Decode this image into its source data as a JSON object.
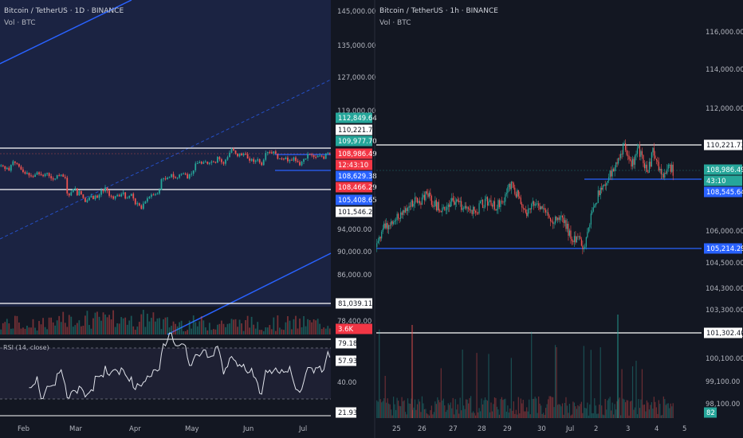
{
  "chart_data": [
    {
      "type": "candlestick",
      "title": "Bitcoin / TetherUS · 1D · BINANCE",
      "subtitle": "Vol · BTC",
      "x_ticks": [
        "Feb",
        "Mar",
        "Apr",
        "May",
        "Jun",
        "Jul"
      ],
      "y_ticks": [
        "145,000.00",
        "135,000.00",
        "127,000.00",
        "119,000.00",
        "94,000.00",
        "90,000.00",
        "86,000.00",
        "78,400.00"
      ],
      "horizontal_levels": [
        110221.73,
        108466.29,
        81039.11
      ],
      "price_labels": [
        {
          "text": "112,849.64",
          "kind": "green"
        },
        {
          "text": "110,221.73",
          "kind": "white"
        },
        {
          "text": "109,977.70",
          "kind": "green"
        },
        {
          "text": "108,986.49",
          "kind": "red"
        },
        {
          "text": "12:43:10",
          "kind": "red"
        },
        {
          "text": "108,629.38",
          "kind": "blue"
        },
        {
          "text": "108,466.29",
          "kind": "red"
        },
        {
          "text": "105,408.65",
          "kind": "blue"
        },
        {
          "text": "101,546.27",
          "kind": "white"
        },
        {
          "text": "81,039.11",
          "kind": "white"
        },
        {
          "text": "3.6K",
          "kind": "red"
        }
      ],
      "close_path": [
        102000,
        101500,
        99800,
        100500,
        98800,
        102200,
        104300,
        103400,
        102800,
        101200,
        99500,
        98000,
        97000,
        97600,
        96000,
        95500,
        95200,
        96400,
        97800,
        96800,
        96200,
        95600,
        96800,
        97400,
        95600,
        94300,
        93600,
        94200,
        96100,
        95800,
        96500,
        95200,
        94600,
        85400,
        84200,
        86100,
        88000,
        88400,
        84300,
        86800,
        84800,
        82700,
        80300,
        81400,
        83000,
        83900,
        82000,
        84100,
        82800,
        84600,
        87200,
        86600,
        88900,
        87000,
        84000,
        83700,
        82300,
        83800,
        84500,
        83600,
        85000,
        86000,
        82400,
        82800,
        83900,
        85200,
        82400,
        79000,
        79600,
        78300,
        76300,
        79400,
        80600,
        82500,
        83400,
        84700,
        84400,
        84900,
        85300,
        87400,
        93800,
        94200,
        93700,
        94700,
        95000,
        96800,
        94900,
        94300,
        94700,
        96500,
        97000,
        97100,
        96800,
        94200,
        96600,
        97000,
        99000,
        103000,
        103200,
        104000,
        102900,
        103800,
        104100,
        102800,
        103500,
        104200,
        104000,
        103500,
        106900,
        105500,
        103800,
        102900,
        105300,
        106800,
        109400,
        111600,
        110700,
        108900,
        107300,
        109000,
        107800,
        108800,
        108600,
        106000,
        104700,
        105700,
        104000,
        104800,
        105500,
        103600,
        102100,
        105200,
        109200,
        109700,
        109600,
        109000,
        110200,
        108700,
        105800,
        106000,
        105900,
        105500,
        106500,
        104400,
        105200,
        104800,
        106600,
        104500,
        103900,
        102000,
        104100,
        105600,
        106000,
        108600,
        108500,
        107900,
        106900,
        106700,
        107400,
        107600,
        107200,
        105800,
        108900,
        109400,
        108986
      ],
      "rsi": {
        "label": "RSI (14, close)",
        "levels": [
          79.18,
          57.93,
          40.0,
          21.93
        ],
        "tick_labels": [
          "79.18",
          "57.93",
          "40.00",
          "21.93"
        ]
      }
    },
    {
      "type": "candlestick",
      "title": "Bitcoin / TetherUS · 1h · BINANCE",
      "subtitle": "Vol · BTC",
      "x_ticks": [
        "25",
        "26",
        "27",
        "28",
        "29",
        "30",
        "Jul",
        "2",
        "3",
        "4",
        "5"
      ],
      "y_ticks": [
        "116,000.00",
        "114,000.00",
        "112,000.00",
        "106,000.00",
        "104,500.00",
        "104,300.00",
        "103,300.00",
        "102,100.00",
        "100,100.00",
        "99,100.00",
        "98,100.00"
      ],
      "horizontal_levels": [
        110221.73,
        108545.64,
        105214.29,
        101302.4
      ],
      "price_labels": [
        {
          "text": "110,221.73",
          "kind": "white"
        },
        {
          "text": "108,986.49",
          "kind": "green"
        },
        {
          "text": "43:10",
          "kind": "green"
        },
        {
          "text": "108,545.64",
          "kind": "blue"
        },
        {
          "text": "105,214.29",
          "kind": "blue"
        },
        {
          "text": "101,302.40",
          "kind": "white"
        },
        {
          "text": "82",
          "kind": "green"
        }
      ],
      "close_path": [
        105300,
        106100,
        106400,
        106300,
        106900,
        106800,
        107200,
        107400,
        107600,
        107500,
        107800,
        107600,
        107300,
        107100,
        107300,
        107500,
        107400,
        107300,
        107100,
        107200,
        107000,
        107300,
        107500,
        107400,
        107200,
        107500,
        107800,
        108300,
        108000,
        107600,
        106900,
        107300,
        107600,
        107200,
        107000,
        106800,
        106600,
        106800,
        106400,
        106000,
        105600,
        105800,
        105200,
        106400,
        107300,
        107900,
        108200,
        108700,
        108900,
        109600,
        110200,
        109500,
        109300,
        110000,
        109400,
        109000,
        110000,
        109300,
        108600,
        109300,
        108986
      ]
    }
  ]
}
